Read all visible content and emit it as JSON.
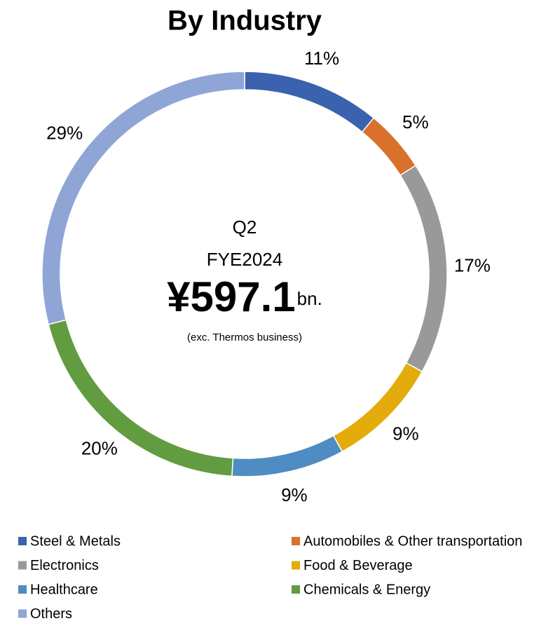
{
  "chart_data": {
    "type": "donut",
    "title": "By Industry",
    "center": {
      "period": "Q2",
      "fiscal_year": "FYE2024",
      "amount": "¥597.1",
      "unit": "bn.",
      "note": "(exc. Thermos business)"
    },
    "categories": [
      "Steel & Metals",
      "Automobiles & Other transportation",
      "Electronics",
      "Food & Beverage",
      "Healthcare",
      "Chemicals & Energy",
      "Others"
    ],
    "values": [
      11,
      5,
      17,
      9,
      9,
      20,
      29
    ],
    "value_labels": [
      "11%",
      "5%",
      "17%",
      "9%",
      "9%",
      "20%",
      "29%"
    ],
    "colors": [
      "#3a62ae",
      "#d9702c",
      "#999999",
      "#e3ac0a",
      "#4e8cc4",
      "#629c40",
      "#8fa5d6"
    ]
  }
}
